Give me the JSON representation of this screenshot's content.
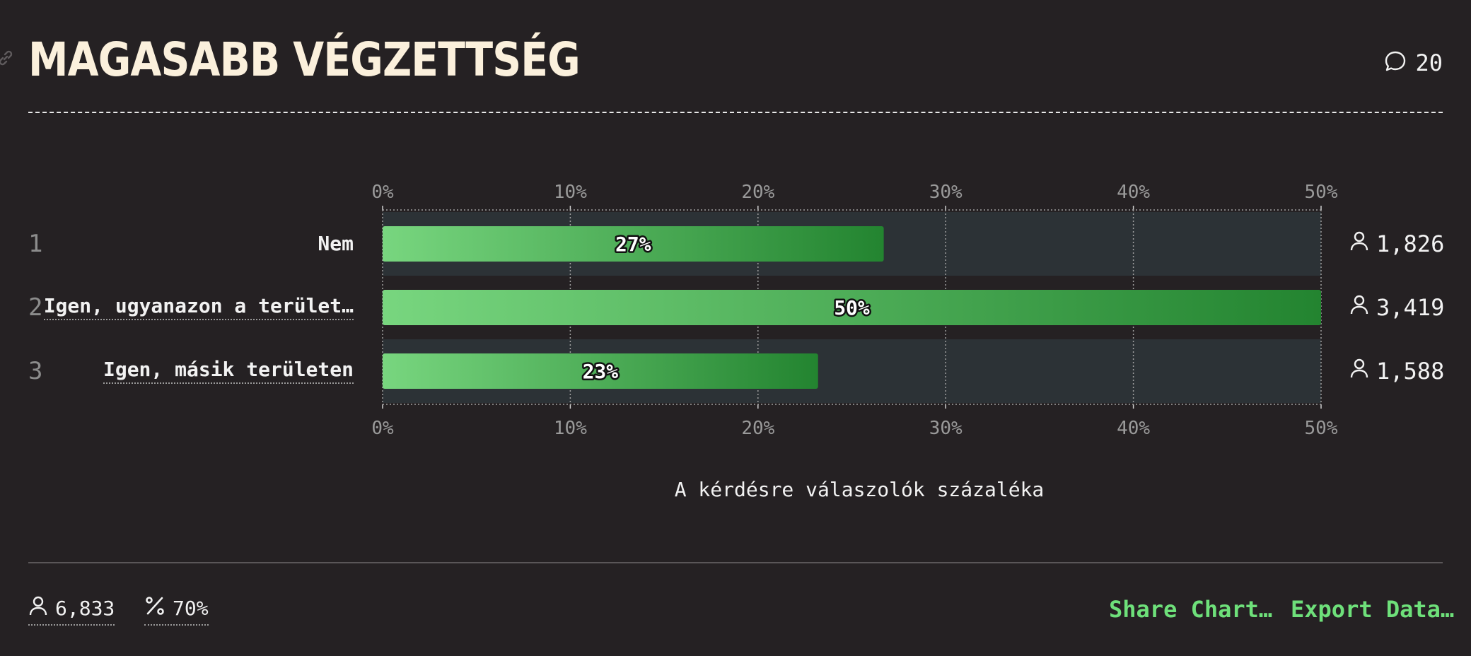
{
  "header": {
    "title": "MAGASABB VÉGZETTSÉG",
    "comment_count": "20"
  },
  "chart_data": {
    "type": "bar",
    "orientation": "horizontal",
    "categories": [
      "Nem",
      "Igen, ugyanazon a terület…",
      "Igen, másik területen"
    ],
    "rank_labels": [
      "1",
      "2",
      "3"
    ],
    "values": [
      26.7,
      50.0,
      23.2
    ],
    "value_labels": [
      "27%",
      "50%",
      "23%"
    ],
    "counts": [
      "1,826",
      "3,419",
      "1,588"
    ],
    "xlim": [
      0,
      50
    ],
    "xticks": [
      "0%",
      "10%",
      "20%",
      "30%",
      "40%",
      "50%"
    ],
    "xlabel": "A kérdésre válaszolók százaléka",
    "grid": true,
    "colors": {
      "bar_start": "#78d67f",
      "bar_end": "#238430",
      "track": "#2c3236",
      "grid": "#a0a0a0"
    }
  },
  "footer": {
    "total_respondents": "6,833",
    "response_rate": "70%",
    "share_label": "Share Chart…",
    "export_label": "Export Data…"
  }
}
